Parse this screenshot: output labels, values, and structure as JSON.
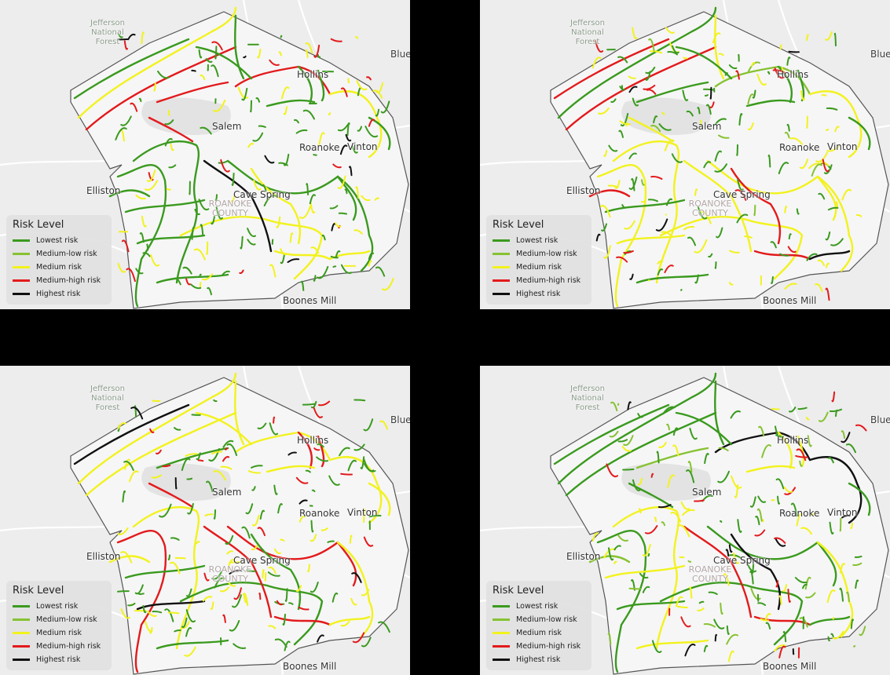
{
  "legend": {
    "title": "Risk Level",
    "items": [
      {
        "label": "Lowest risk",
        "color": "#3a9a1e"
      },
      {
        "label": "Medium-low risk",
        "color": "#86c232"
      },
      {
        "label": "Medium risk",
        "color": "#f2f21e"
      },
      {
        "label": "Medium-high risk",
        "color": "#e31a1c"
      },
      {
        "label": "Highest risk",
        "color": "#111111"
      }
    ]
  },
  "places": {
    "forest": "Jefferson\nNational\nForest",
    "blue": "Blue",
    "hollins": "Hollins",
    "salem": "Salem",
    "roanoke": "Roanoke",
    "vinton": "Vinton",
    "elliston": "Elliston",
    "cave_spring": "Cave Spring",
    "county": "ROANOKE\nCOUNTY",
    "boones_mill": "Boones Mill"
  },
  "panels": [
    {
      "name": "map-panel-top-left",
      "mix": [
        0.46,
        0.0,
        0.34,
        0.12,
        0.08
      ],
      "seed": 11
    },
    {
      "name": "map-panel-top-right",
      "mix": [
        0.44,
        0.04,
        0.36,
        0.11,
        0.05
      ],
      "seed": 23
    },
    {
      "name": "map-panel-bottom-left",
      "mix": [
        0.45,
        0.0,
        0.38,
        0.13,
        0.04
      ],
      "seed": 37
    },
    {
      "name": "map-panel-bottom-right",
      "mix": [
        0.36,
        0.2,
        0.28,
        0.09,
        0.07
      ],
      "seed": 51
    }
  ]
}
